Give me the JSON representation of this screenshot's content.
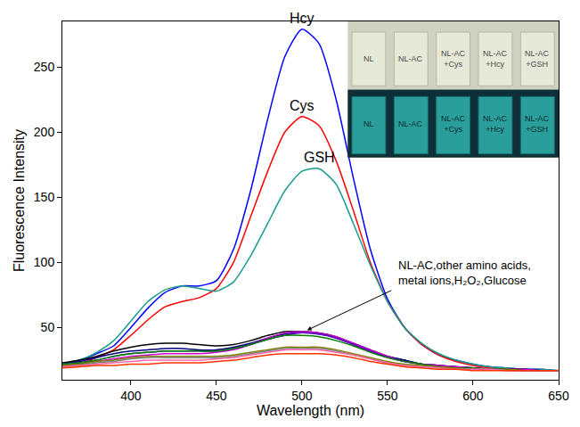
{
  "chart_data": {
    "type": "line",
    "xlabel": "Wavelength (nm)",
    "ylabel": "Fluorescence Intensity",
    "x": [
      360,
      370,
      380,
      390,
      400,
      410,
      420,
      430,
      440,
      450,
      460,
      470,
      480,
      490,
      500,
      510,
      520,
      530,
      540,
      550,
      560,
      570,
      580,
      590,
      600,
      610,
      620,
      630,
      640,
      650
    ],
    "xlim": [
      360,
      650
    ],
    "xticks": [
      400,
      450,
      500,
      550,
      600,
      650
    ],
    "ylim": [
      10,
      285
    ],
    "yticks": [
      50,
      100,
      150,
      200,
      250
    ],
    "grid": false,
    "series": [
      {
        "name": "Hcy",
        "color": "#0000ff",
        "values": [
          22,
          25,
          30,
          36,
          50,
          65,
          77,
          82,
          82,
          86,
          110,
          155,
          210,
          258,
          279,
          268,
          225,
          165,
          110,
          72,
          50,
          37,
          29,
          25,
          22,
          20,
          19,
          18,
          18,
          17
        ]
      },
      {
        "name": "Cys",
        "color": "#ff0000",
        "values": [
          20,
          22,
          27,
          33,
          44,
          56,
          66,
          70,
          73,
          80,
          100,
          135,
          170,
          200,
          212,
          205,
          178,
          140,
          100,
          70,
          50,
          37,
          29,
          24,
          21,
          19,
          18,
          18,
          17,
          17
        ]
      },
      {
        "name": "GSH",
        "color": "#199c8c",
        "values": [
          22,
          25,
          31,
          40,
          55,
          70,
          79,
          82,
          80,
          78,
          85,
          105,
          130,
          155,
          170,
          172,
          160,
          130,
          98,
          70,
          50,
          38,
          30,
          25,
          22,
          20,
          19,
          18,
          18,
          17
        ]
      },
      {
        "color": "#000000",
        "values": [
          23,
          25,
          28,
          32,
          35,
          37,
          38,
          38,
          37,
          36,
          37,
          40,
          44,
          47,
          47,
          46,
          43,
          38,
          33,
          28,
          25,
          22,
          21,
          20,
          19,
          18,
          18,
          18,
          17,
          17
        ]
      },
      {
        "color": "#000080",
        "values": [
          22,
          24,
          27,
          30,
          32,
          33,
          34,
          34,
          33,
          33,
          35,
          38,
          42,
          45,
          46,
          45,
          42,
          37,
          32,
          28,
          25,
          22,
          21,
          20,
          19,
          18,
          18,
          18,
          17,
          17
        ]
      },
      {
        "color": "#cc00cc",
        "values": [
          21,
          22,
          24,
          26,
          28,
          29,
          30,
          30,
          30,
          31,
          33,
          37,
          42,
          46,
          47,
          46,
          43,
          38,
          33,
          28,
          24,
          22,
          21,
          20,
          19,
          18,
          18,
          18,
          17,
          17
        ]
      },
      {
        "color": "#6600cc",
        "values": [
          22,
          23,
          25,
          28,
          30,
          31,
          32,
          32,
          32,
          32,
          34,
          37,
          41,
          44,
          46,
          45,
          42,
          37,
          32,
          27,
          24,
          22,
          20,
          19,
          19,
          18,
          18,
          17,
          17,
          17
        ]
      },
      {
        "color": "#008000",
        "values": [
          22,
          23,
          25,
          28,
          30,
          31,
          32,
          32,
          32,
          32,
          34,
          37,
          41,
          44,
          44,
          43,
          40,
          36,
          31,
          27,
          24,
          22,
          20,
          19,
          19,
          18,
          18,
          17,
          17,
          17
        ]
      },
      {
        "color": "#808000",
        "values": [
          21,
          22,
          24,
          25,
          27,
          28,
          28,
          28,
          28,
          28,
          29,
          31,
          33,
          35,
          35,
          35,
          33,
          30,
          27,
          24,
          22,
          21,
          20,
          19,
          18,
          18,
          18,
          17,
          17,
          17
        ]
      },
      {
        "color": "#808080",
        "values": [
          20,
          21,
          23,
          24,
          26,
          27,
          27,
          27,
          27,
          27,
          28,
          30,
          32,
          34,
          34,
          34,
          32,
          29,
          26,
          23,
          21,
          20,
          19,
          18,
          18,
          18,
          17,
          17,
          17,
          17
        ]
      },
      {
        "color": "#ff66aa",
        "values": [
          20,
          21,
          22,
          23,
          24,
          25,
          25,
          25,
          25,
          26,
          27,
          29,
          31,
          33,
          33,
          33,
          31,
          29,
          26,
          23,
          21,
          20,
          19,
          18,
          18,
          18,
          17,
          17,
          17,
          17
        ]
      },
      {
        "color": "#ff3300",
        "values": [
          19,
          20,
          21,
          21,
          22,
          22,
          23,
          23,
          23,
          24,
          25,
          27,
          29,
          30,
          30,
          30,
          29,
          27,
          24,
          22,
          20,
          19,
          18,
          18,
          17,
          17,
          17,
          17,
          17,
          17
        ]
      }
    ],
    "annotations": [
      {
        "text_lines": [
          "NL-AC,other amino acids,",
          "metal ions,H₂O₂,Glucose"
        ],
        "x": 555,
        "y": 92,
        "arrow_from": [
          553,
          79
        ],
        "arrow_to": [
          503,
          48
        ]
      }
    ],
    "inset_labels": [
      "NL",
      "NL-AC",
      "NL-AC +Cys",
      "NL-AC +Hcy",
      "NL-AC +GSH"
    ]
  }
}
